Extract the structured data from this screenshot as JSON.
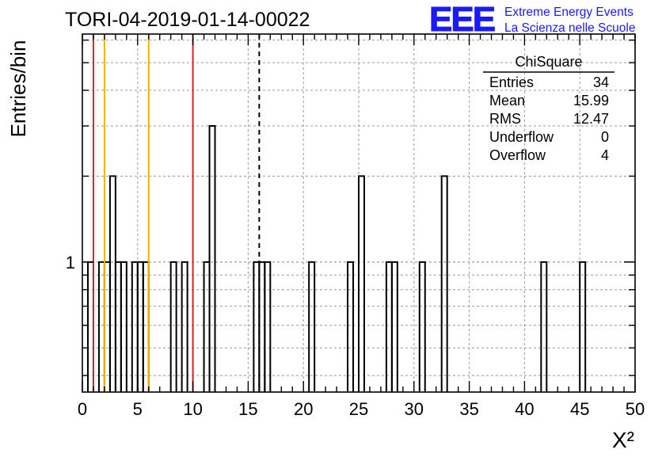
{
  "header": {
    "run_title": "TORI-04-2019-01-14-00022",
    "logo_text": "EEE",
    "project_line1": "Extreme Energy Events",
    "project_line2": "La Scienza nelle Scuole"
  },
  "stats_box": {
    "title": "ChiSquare",
    "rows": [
      {
        "label": "Entries",
        "value": "34"
      },
      {
        "label": "Mean",
        "value": "15.99"
      },
      {
        "label": "RMS",
        "value": "12.47"
      },
      {
        "label": "Underflow",
        "value": "0"
      },
      {
        "label": "Overflow",
        "value": "4"
      }
    ]
  },
  "chart_data": {
    "type": "histogram",
    "title": "TORI-04-2019-01-14-00022",
    "xlabel": "X²",
    "ylabel": "Entries/bin",
    "xlim": [
      0,
      50
    ],
    "ylim": [
      0.35,
      6.3
    ],
    "yscale": "log",
    "bin_width": 0.5,
    "x_ticks": [
      0,
      5,
      10,
      15,
      20,
      25,
      30,
      35,
      40,
      45,
      50
    ],
    "x_tick_labels": [
      "0",
      "5",
      "10",
      "15",
      "20",
      "25",
      "30",
      "35",
      "40",
      "45",
      "50"
    ],
    "y_ticks": [
      1
    ],
    "y_tick_labels": [
      "1"
    ],
    "grid": true,
    "bins": [
      {
        "x": 0.5,
        "count": 1
      },
      {
        "x": 1.0,
        "count": 0
      },
      {
        "x": 1.5,
        "count": 1
      },
      {
        "x": 2.0,
        "count": 1
      },
      {
        "x": 2.5,
        "count": 2
      },
      {
        "x": 3.0,
        "count": 1
      },
      {
        "x": 3.5,
        "count": 1
      },
      {
        "x": 4.0,
        "count": 0
      },
      {
        "x": 4.5,
        "count": 1
      },
      {
        "x": 5.0,
        "count": 1
      },
      {
        "x": 5.5,
        "count": 1
      },
      {
        "x": 8.0,
        "count": 1
      },
      {
        "x": 9.0,
        "count": 1
      },
      {
        "x": 11.0,
        "count": 1
      },
      {
        "x": 11.5,
        "count": 3
      },
      {
        "x": 15.5,
        "count": 1
      },
      {
        "x": 16.0,
        "count": 1
      },
      {
        "x": 16.5,
        "count": 1
      },
      {
        "x": 20.5,
        "count": 1
      },
      {
        "x": 24.0,
        "count": 1
      },
      {
        "x": 25.0,
        "count": 2
      },
      {
        "x": 27.5,
        "count": 1
      },
      {
        "x": 28.0,
        "count": 1
      },
      {
        "x": 30.5,
        "count": 1
      },
      {
        "x": 32.5,
        "count": 2
      },
      {
        "x": 41.5,
        "count": 1
      },
      {
        "x": 45.0,
        "count": 1
      }
    ],
    "reference_lines": [
      {
        "x": 1.0,
        "color": "#dd2222",
        "style": "solid"
      },
      {
        "x": 2.0,
        "color": "#f0b400",
        "style": "solid"
      },
      {
        "x": 6.0,
        "color": "#f0b400",
        "style": "solid"
      },
      {
        "x": 10.0,
        "color": "#dd2222",
        "style": "solid"
      },
      {
        "x": 16.0,
        "color": "#000000",
        "style": "dashed"
      }
    ]
  },
  "colors": {
    "logo": "#1a1aff",
    "histogram": "#000000",
    "grid": "#999999"
  }
}
